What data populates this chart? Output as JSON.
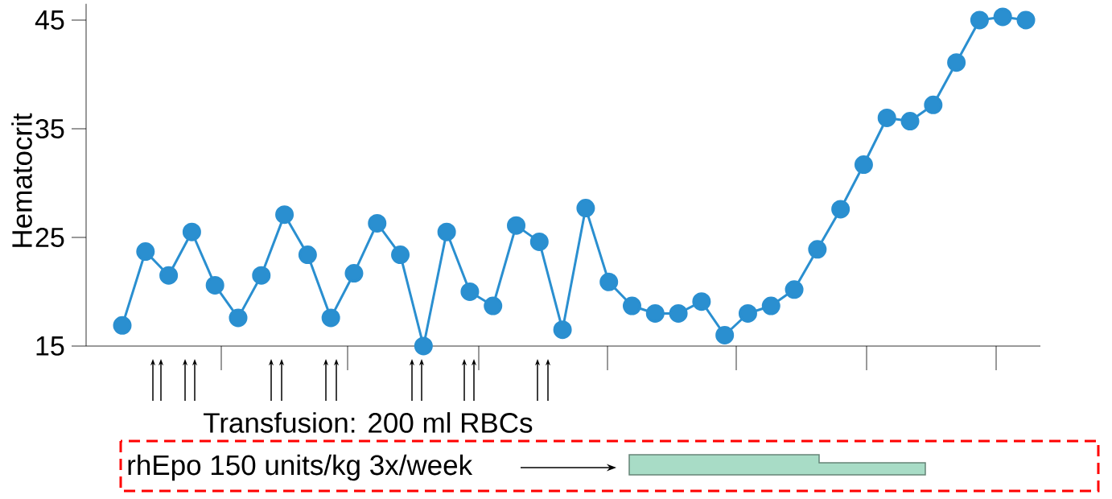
{
  "chart_data": {
    "type": "line",
    "ylabel": "Hematocrit",
    "categories": [
      null,
      null,
      null,
      null,
      null,
      null,
      null,
      null,
      null,
      null,
      null,
      null,
      null,
      null,
      null,
      null,
      null,
      null,
      null,
      null,
      null,
      null,
      null,
      null,
      null,
      null,
      null,
      null,
      null,
      null,
      null,
      null,
      null,
      null,
      null,
      null,
      null,
      null,
      null,
      null
    ],
    "values": [
      16.9,
      23.7,
      21.5,
      25.5,
      20.6,
      17.6,
      21.5,
      27.1,
      23.4,
      17.6,
      21.7,
      26.3,
      23.4,
      15.0,
      25.5,
      20.0,
      18.7,
      26.1,
      24.6,
      16.5,
      27.7,
      20.9,
      18.7,
      18.0,
      18.0,
      19.1,
      16.0,
      18.0,
      18.7,
      20.2,
      23.9,
      27.6,
      31.7,
      36.0,
      35.7,
      37.2,
      41.1,
      45.0,
      45.3,
      45.0
    ],
    "color": "#2a8fd0",
    "marker": "circle",
    "line_style": "solid",
    "grid": false,
    "tick_labels": "y",
    "ylim": [
      15,
      46.5
    ],
    "yticks": [
      15,
      25,
      35,
      45
    ],
    "annotations": [
      "Transfusion: 200 ml RBCs",
      "rhEpo 150 units/kg 3x/week"
    ]
  }
}
